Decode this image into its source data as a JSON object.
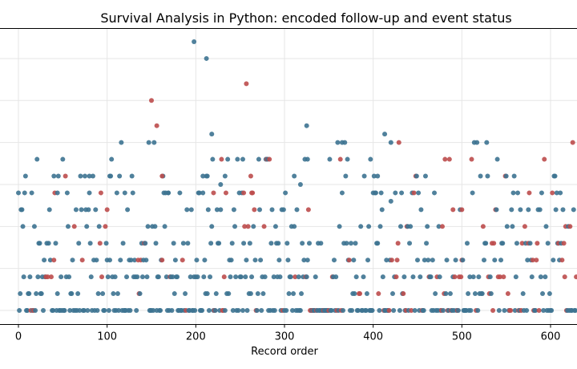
{
  "chart_data": {
    "type": "scatter",
    "title": "Survival Analysis in Python: encoded follow-up and event status",
    "xlabel": "Record order",
    "ylabel": "",
    "xlim": [
      -20,
      630
    ],
    "ylim": [
      -0.7,
      16.9
    ],
    "x_ticks": [
      0,
      100,
      200,
      300,
      400,
      500,
      600
    ],
    "y_grid_values": [
      0,
      2.5,
      5,
      7.5,
      10,
      12.5,
      15
    ],
    "grid": true,
    "legend": "none",
    "colors": {
      "censored": "#3d7391",
      "event": "#bd4c4c"
    },
    "x_range": [
      0,
      629
    ],
    "y_max": 16.0,
    "seed": 20240611
  }
}
